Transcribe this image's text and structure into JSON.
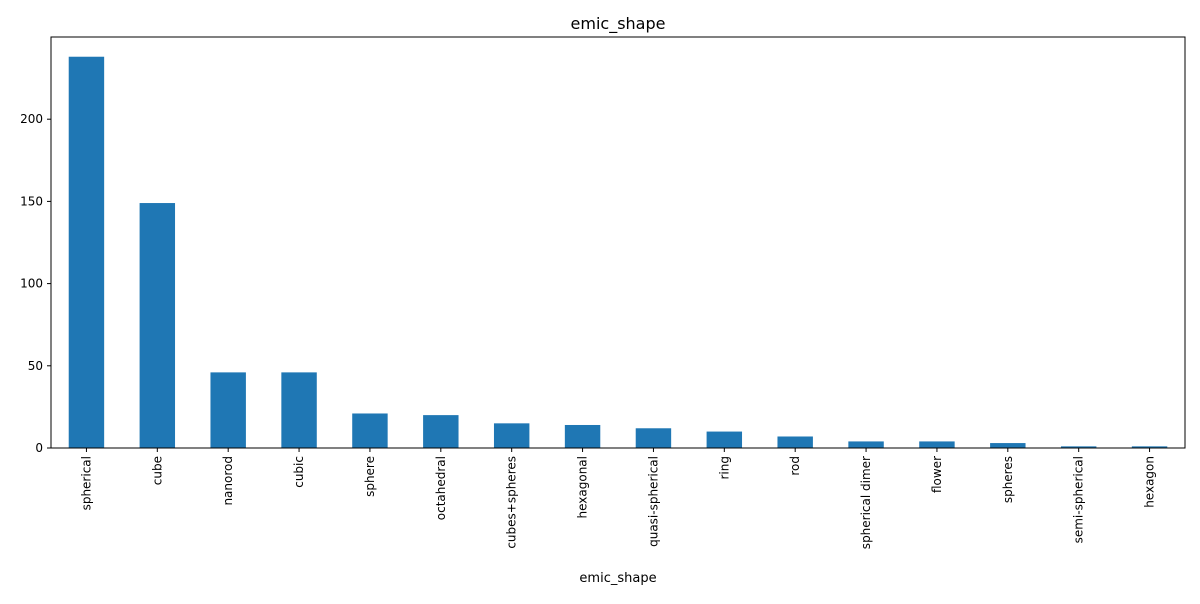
{
  "chart_data": {
    "type": "bar",
    "title": "emic_shape",
    "xlabel": "emic_shape",
    "ylabel": "",
    "categories": [
      "spherical",
      "cube",
      "nanorod",
      "cubic",
      "sphere",
      "octahedral",
      "cubes+spheres",
      "hexagonal",
      "quasi-spherical",
      "ring",
      "rod",
      "spherical dimer",
      "flower",
      "spheres",
      "semi-spherical",
      "hexagon"
    ],
    "values": [
      238,
      149,
      46,
      46,
      21,
      20,
      15,
      14,
      12,
      10,
      7,
      4,
      4,
      3,
      1,
      1
    ],
    "ylim": [
      0,
      250
    ],
    "yticks": [
      0,
      50,
      100,
      150,
      200
    ],
    "grid": false,
    "bar_color": "#1f77b4"
  }
}
